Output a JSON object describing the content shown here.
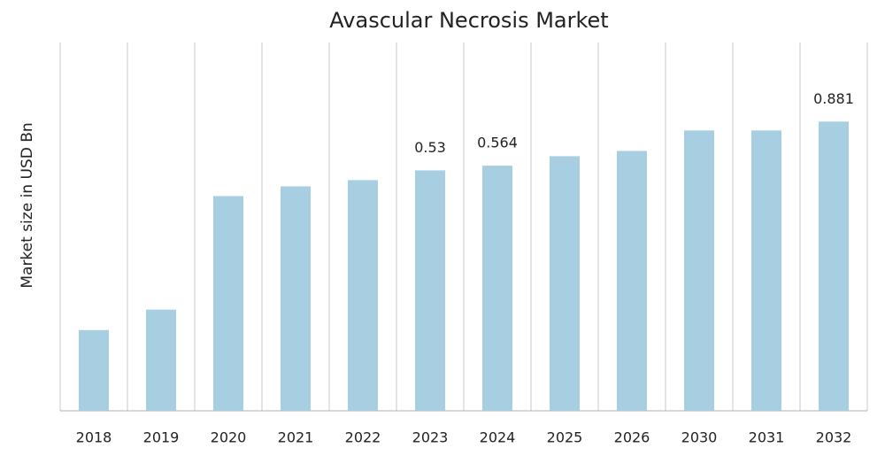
{
  "chart_data": {
    "type": "bar",
    "title": "Avascular Necrosis Market",
    "y_label": "Market size in USD Bn",
    "categories": [
      "2018",
      "2019",
      "2020",
      "2021",
      "2022",
      "2023",
      "2024",
      "2025",
      "2026",
      "2030",
      "2031",
      "2032"
    ],
    "values": [
      -0.619,
      -0.472,
      0.345,
      0.415,
      0.46,
      0.53,
      0.564,
      0.632,
      0.67,
      0.817,
      0.817,
      0.881
    ],
    "value_labels": [
      null,
      null,
      null,
      null,
      null,
      "0.53",
      "0.564",
      null,
      null,
      null,
      null,
      "0.881"
    ],
    "color": "#a8cfe1",
    "ylim": [
      -1.2,
      1.45
    ]
  }
}
